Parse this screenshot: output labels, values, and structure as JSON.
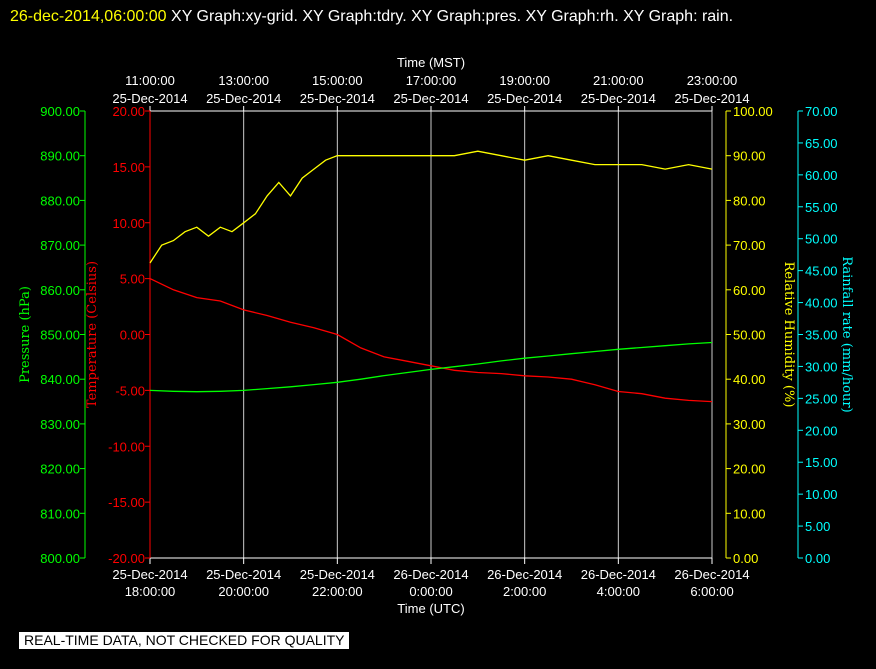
{
  "header": {
    "date": "26-dec-2014,06:00:00",
    "rest": "XY Graph:xy-grid.  XY Graph:tdry.  XY Graph:pres.  XY Graph:rh.  XY Graph: rain."
  },
  "disclaimer": "REAL-TIME DATA, NOT CHECKED FOR QUALITY",
  "chart_data": {
    "type": "line",
    "colors": {
      "pressure": "#00ff00",
      "temperature": "#ff0000",
      "humidity": "#ffff00",
      "rain": "#00ffff",
      "grid": "#ffffff"
    },
    "top_axis": {
      "label": "Time (MST)",
      "ticks": [
        {
          "time": "11:00:00",
          "date": "25-Dec-2014"
        },
        {
          "time": "13:00:00",
          "date": "25-Dec-2014"
        },
        {
          "time": "15:00:00",
          "date": "25-Dec-2014"
        },
        {
          "time": "17:00:00",
          "date": "25-Dec-2014"
        },
        {
          "time": "19:00:00",
          "date": "25-Dec-2014"
        },
        {
          "time": "21:00:00",
          "date": "25-Dec-2014"
        },
        {
          "time": "23:00:00",
          "date": "25-Dec-2014"
        }
      ]
    },
    "bottom_axis": {
      "label": "Time (UTC)",
      "ticks": [
        {
          "date": "25-Dec-2014",
          "time": "18:00:00"
        },
        {
          "date": "25-Dec-2014",
          "time": "20:00:00"
        },
        {
          "date": "25-Dec-2014",
          "time": "22:00:00"
        },
        {
          "date": "26-Dec-2014",
          "time": "0:00:00"
        },
        {
          "date": "26-Dec-2014",
          "time": "2:00:00"
        },
        {
          "date": "26-Dec-2014",
          "time": "4:00:00"
        },
        {
          "date": "26-Dec-2014",
          "time": "6:00:00"
        }
      ]
    },
    "x_hours_utc_range": [
      18,
      30
    ],
    "axes": {
      "pressure": {
        "label": "Pressure (hPa)",
        "range": [
          800,
          900
        ],
        "ticks": [
          "800.00",
          "810.00",
          "820.00",
          "830.00",
          "840.00",
          "850.00",
          "860.00",
          "870.00",
          "880.00",
          "890.00",
          "900.00"
        ]
      },
      "temperature": {
        "label": "Temperature (Celsius)",
        "range": [
          -20,
          20
        ],
        "ticks": [
          "-20.00",
          "-15.00",
          "-10.00",
          "-5.00",
          "0.00",
          "5.00",
          "10.00",
          "15.00",
          "20.00"
        ]
      },
      "humidity": {
        "label": "Relative Humidity (%)",
        "range": [
          0,
          100
        ],
        "ticks": [
          "0.00",
          "10.00",
          "20.00",
          "30.00",
          "40.00",
          "50.00",
          "60.00",
          "70.00",
          "80.00",
          "90.00",
          "100.00"
        ]
      },
      "rain": {
        "label": "Rainfall rate (mm/hour)",
        "range": [
          0,
          70
        ],
        "ticks": [
          "0.00",
          "5.00",
          "10.00",
          "15.00",
          "20.00",
          "25.00",
          "30.00",
          "35.00",
          "40.00",
          "45.00",
          "50.00",
          "55.00",
          "60.00",
          "65.00",
          "70.00"
        ]
      }
    },
    "series": [
      {
        "name": "tdry",
        "key": "temperature",
        "x": [
          18,
          18.5,
          19,
          19.5,
          20,
          20.5,
          21,
          21.5,
          22,
          22.5,
          23,
          23.5,
          24,
          24.5,
          25,
          25.5,
          26,
          26.5,
          27,
          27.5,
          28,
          28.5,
          29,
          29.5,
          30
        ],
        "y": [
          5.0,
          4.0,
          3.3,
          3.0,
          2.2,
          1.7,
          1.1,
          0.6,
          0.0,
          -1.2,
          -2.0,
          -2.4,
          -2.8,
          -3.2,
          -3.4,
          -3.5,
          -3.7,
          -3.8,
          -4.0,
          -4.5,
          -5.1,
          -5.3,
          -5.7,
          -5.9,
          -6.0
        ]
      },
      {
        "name": "pres",
        "key": "pressure",
        "x": [
          18,
          18.5,
          19,
          19.5,
          20,
          20.5,
          21,
          21.5,
          22,
          22.5,
          23,
          23.5,
          24,
          24.5,
          25,
          25.5,
          26,
          26.5,
          27,
          27.5,
          28,
          28.5,
          29,
          29.5,
          30
        ],
        "y": [
          837.5,
          837.3,
          837.2,
          837.3,
          837.5,
          837.9,
          838.3,
          838.8,
          839.3,
          840.0,
          840.8,
          841.5,
          842.2,
          842.8,
          843.4,
          844.1,
          844.7,
          845.2,
          845.7,
          846.2,
          846.7,
          847.1,
          847.5,
          847.9,
          848.2
        ]
      },
      {
        "name": "rh",
        "key": "humidity",
        "x": [
          18,
          18.25,
          18.5,
          18.75,
          19,
          19.25,
          19.5,
          19.75,
          20,
          20.25,
          20.5,
          20.75,
          21,
          21.25,
          21.5,
          21.75,
          22,
          22.5,
          23,
          23.5,
          24,
          24.5,
          25,
          25.5,
          26,
          26.5,
          27,
          27.5,
          28,
          28.5,
          29,
          29.5,
          30
        ],
        "y": [
          66,
          70,
          71,
          73,
          74,
          72,
          74,
          73,
          75,
          77,
          81,
          84,
          81,
          85,
          87,
          89,
          90,
          90,
          90,
          90,
          90,
          90,
          91,
          90,
          89,
          90,
          89,
          88,
          88,
          88,
          87,
          88,
          87
        ]
      }
    ]
  }
}
